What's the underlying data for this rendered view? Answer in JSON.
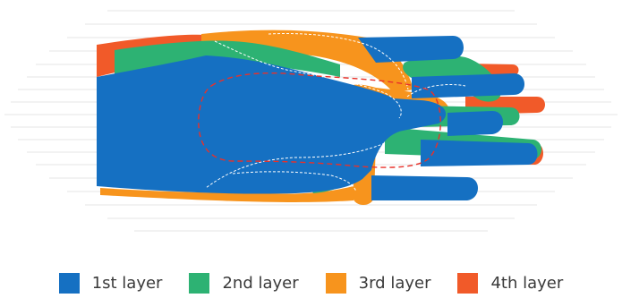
{
  "colors": {
    "layer1": "#1570c2",
    "layer2": "#2db273",
    "layer3": "#f7941d",
    "layer4": "#f15a29",
    "guides": "#e3e3e3",
    "outline": "#ffffff",
    "dash_red": "#e8312a"
  },
  "legend": {
    "items": [
      {
        "label": "1st layer",
        "color": "#1570c2"
      },
      {
        "label": "2nd layer",
        "color": "#2db273"
      },
      {
        "label": "3rd layer",
        "color": "#f7941d"
      },
      {
        "label": "4th layer",
        "color": "#f15a29"
      }
    ]
  }
}
